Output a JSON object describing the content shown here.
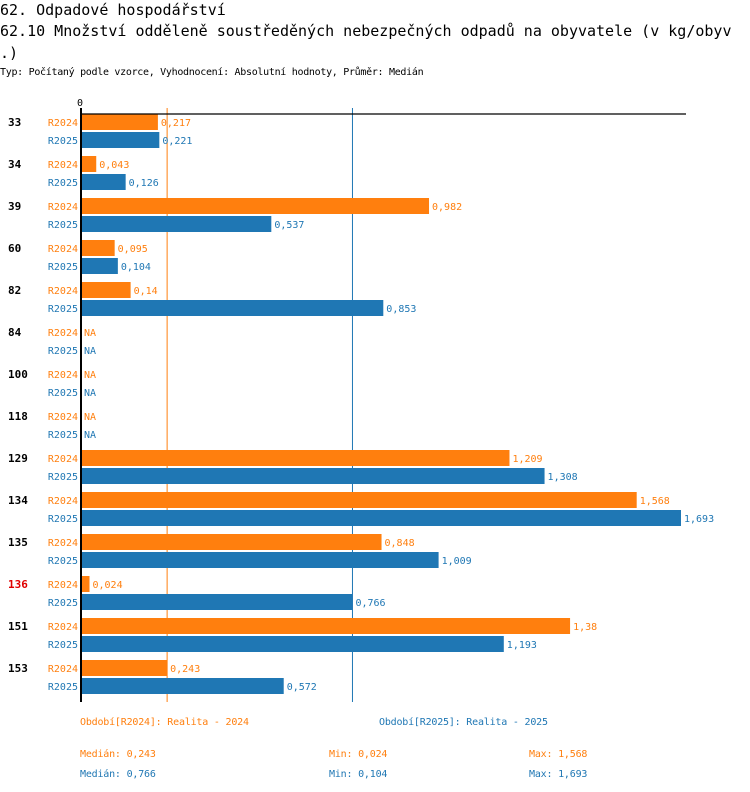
{
  "header": {
    "section": "62. Odpadové hospodářství",
    "indicator": "62.10 Množství odděleně soustředěných nebezpečných odpadů na obyvatele (v kg/obyv .)",
    "subtitle": "Typ: Počítaný podle vzorce, Vyhodnocení: Absolutní hodnoty, Průměr: Medián"
  },
  "colors": {
    "R2024": "#ff7f0e",
    "R2025": "#1f77b4",
    "highlight": "#e00000",
    "axis": "#000000"
  },
  "chart_data": {
    "type": "bar",
    "orientation": "horizontal",
    "title": "62.10 Množství odděleně soustředěných nebezpečných odpadů na obyvatele (v kg/obyv .)",
    "xlabel": "",
    "ylabel": "",
    "x_tick_labels": [
      "0"
    ],
    "xlim": [
      0,
      1.693
    ],
    "grid": false,
    "highlighted_category": "136",
    "categories": [
      "33",
      "34",
      "39",
      "60",
      "82",
      "84",
      "100",
      "118",
      "129",
      "134",
      "135",
      "136",
      "151",
      "153"
    ],
    "series": [
      {
        "name": "R2024",
        "values": [
          0.217,
          0.043,
          0.982,
          0.095,
          0.14,
          null,
          null,
          null,
          1.209,
          1.568,
          0.848,
          0.024,
          1.38,
          0.243
        ],
        "labels": [
          "0,217",
          "0,043",
          "0,982",
          "0,095",
          "0,14",
          "NA",
          "NA",
          "NA",
          "1,209",
          "1,568",
          "0,848",
          "0,024",
          "1,38",
          "0,243"
        ]
      },
      {
        "name": "R2025",
        "values": [
          0.221,
          0.126,
          0.537,
          0.104,
          0.853,
          null,
          null,
          null,
          1.308,
          1.693,
          1.009,
          0.766,
          1.193,
          0.572
        ],
        "labels": [
          "0,221",
          "0,126",
          "0,537",
          "0,104",
          "0,853",
          "NA",
          "NA",
          "NA",
          "1,308",
          "1,693",
          "1,009",
          "0,766",
          "1,193",
          "0,572"
        ]
      }
    ],
    "reference_lines": [
      {
        "series": "R2024",
        "type": "median",
        "value": 0.243
      },
      {
        "series": "R2025",
        "type": "median",
        "value": 0.766
      }
    ]
  },
  "legend": {
    "R2024": "Období[R2024]: Realita - 2024",
    "R2025": "Období[R2025]: Realita - 2025"
  },
  "stats": {
    "R2024": {
      "median": "Medián: 0,243",
      "min": "Min: 0,024",
      "max": "Max: 1,568"
    },
    "R2025": {
      "median": "Medián: 0,766",
      "min": "Min: 0,104",
      "max": "Max: 1,693"
    }
  }
}
